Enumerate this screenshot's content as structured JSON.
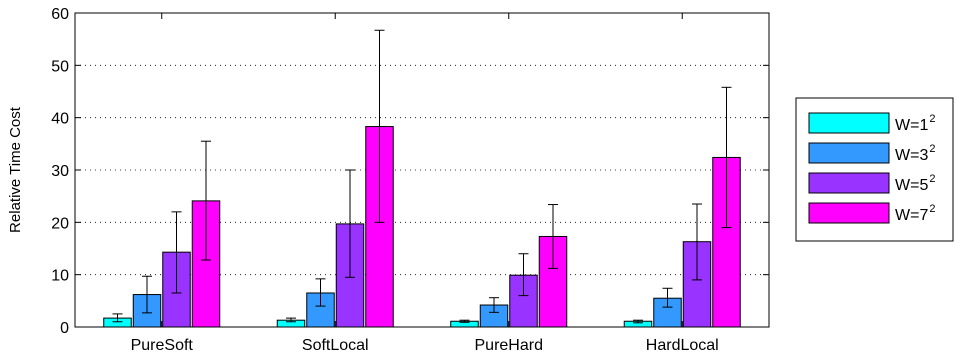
{
  "chart_data": {
    "type": "bar",
    "title": "",
    "xlabel": "",
    "ylabel": "Relative Time Cost",
    "ylim": [
      0,
      60
    ],
    "yticks": [
      0,
      10,
      20,
      30,
      40,
      50,
      60
    ],
    "grid": "dotted horizontal",
    "legend_placement": "right",
    "error_bars": true,
    "categories": [
      "PureSoft",
      "SoftLocal",
      "PureHard",
      "HardLocal"
    ],
    "series": [
      {
        "name": "W=1",
        "sup": "2",
        "color": "#00ffff",
        "values": [
          1.7,
          1.3,
          1.1,
          1.1
        ],
        "err_low": [
          1.0,
          1.0,
          0.9,
          0.8
        ],
        "err_high": [
          2.5,
          1.7,
          1.3,
          1.3
        ]
      },
      {
        "name": "W=3",
        "sup": "2",
        "color": "#3399ff",
        "values": [
          6.2,
          6.5,
          4.2,
          5.5
        ],
        "err_low": [
          2.7,
          4.0,
          2.8,
          3.8
        ],
        "err_high": [
          9.7,
          9.2,
          5.6,
          7.4
        ]
      },
      {
        "name": "W=5",
        "sup": "2",
        "color": "#9933ff",
        "values": [
          14.3,
          19.7,
          9.9,
          16.3
        ],
        "err_low": [
          6.5,
          9.5,
          6.0,
          9.0
        ],
        "err_high": [
          22.0,
          30.0,
          14.0,
          23.5
        ]
      },
      {
        "name": "W=7",
        "sup": "2",
        "color": "#ff00ff",
        "values": [
          24.1,
          38.3,
          17.3,
          32.4
        ],
        "err_low": [
          12.8,
          20.0,
          11.2,
          19.0
        ],
        "err_high": [
          35.5,
          56.7,
          23.4,
          45.8
        ]
      }
    ]
  }
}
